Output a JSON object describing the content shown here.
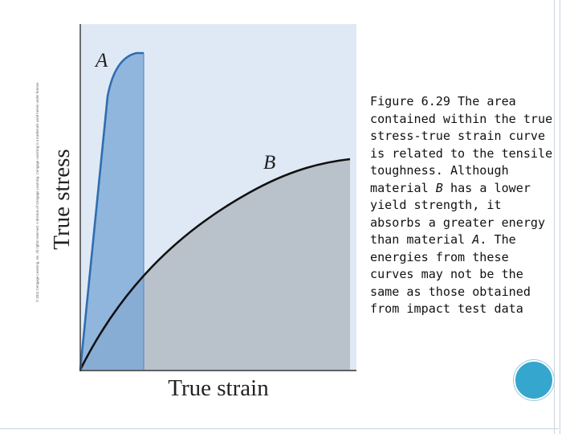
{
  "copyright": "© 2011 Cengage Learning, Inc. All rights reserved. A division of Cengage Learning. Cengage Learning is a trademark used herein under license.",
  "chart_data": {
    "type": "area",
    "xlabel": "True strain",
    "ylabel": "True stress",
    "series": [
      {
        "name": "A",
        "color": "#7aa8d7"
      },
      {
        "name": "B",
        "color": "#b9c1cb"
      }
    ],
    "colors": {
      "plot_background": "#dfe9f5",
      "curve": "#111111"
    }
  },
  "caption": {
    "prefix": "Figure 6.29 The area contained within the true stress-true strain curve is related to the tensile toughness. Although material ",
    "material_b": "B",
    "middle": " has a lower yield strength, it absorbs a greater energy than material ",
    "material_a": "A",
    "suffix": ". The energies from these curves may not be the same as those obtained from impact test data"
  }
}
